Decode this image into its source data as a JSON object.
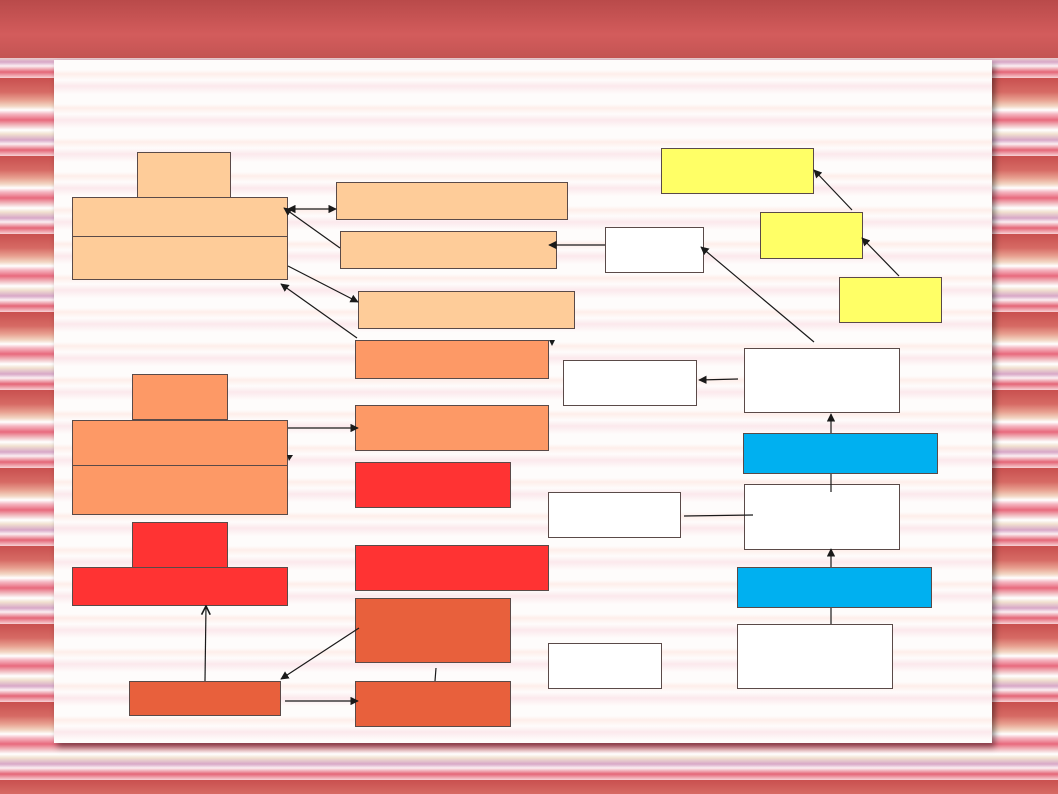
{
  "diagram": {
    "colors": {
      "peach": "#fecc99",
      "orange": "#fd9966",
      "red": "#ff3333",
      "brick": "#e8603c",
      "white": "#ffffff",
      "yellow": "#ffff66",
      "blue": "#00b0f0",
      "line": "#1a1a1a"
    },
    "nodes": [
      {
        "id": "peach-tab",
        "color": "peach",
        "text": ""
      },
      {
        "id": "peach-main",
        "color": "peach",
        "text": ""
      },
      {
        "id": "peach-1",
        "color": "peach",
        "text": ""
      },
      {
        "id": "peach-2",
        "color": "peach",
        "text": ""
      },
      {
        "id": "peach-3",
        "color": "peach",
        "text": ""
      },
      {
        "id": "orange-tab",
        "color": "orange",
        "text": ""
      },
      {
        "id": "orange-main",
        "color": "orange",
        "text": ""
      },
      {
        "id": "orange-1",
        "color": "orange",
        "text": ""
      },
      {
        "id": "orange-2",
        "color": "orange",
        "text": ""
      },
      {
        "id": "red-tab",
        "color": "red",
        "text": ""
      },
      {
        "id": "red-main",
        "color": "red",
        "text": ""
      },
      {
        "id": "red-1",
        "color": "red",
        "text": ""
      },
      {
        "id": "red-2",
        "color": "red",
        "text": ""
      },
      {
        "id": "brick-main",
        "color": "brick",
        "text": ""
      },
      {
        "id": "brick-1",
        "color": "brick",
        "text": ""
      },
      {
        "id": "brick-2",
        "color": "brick",
        "text": ""
      },
      {
        "id": "white-1",
        "color": "white",
        "text": ""
      },
      {
        "id": "white-2",
        "color": "white",
        "text": ""
      },
      {
        "id": "white-3",
        "color": "white",
        "text": ""
      },
      {
        "id": "white-4",
        "color": "white",
        "text": ""
      },
      {
        "id": "white-5",
        "color": "white",
        "text": ""
      },
      {
        "id": "white-6",
        "color": "white",
        "text": ""
      },
      {
        "id": "white-7",
        "color": "white",
        "text": ""
      },
      {
        "id": "yellow-1",
        "color": "yellow",
        "text": ""
      },
      {
        "id": "yellow-2",
        "color": "yellow",
        "text": ""
      },
      {
        "id": "yellow-3",
        "color": "yellow",
        "text": ""
      },
      {
        "id": "blue-1",
        "color": "blue",
        "text": ""
      },
      {
        "id": "blue-2",
        "color": "blue",
        "text": ""
      }
    ]
  }
}
